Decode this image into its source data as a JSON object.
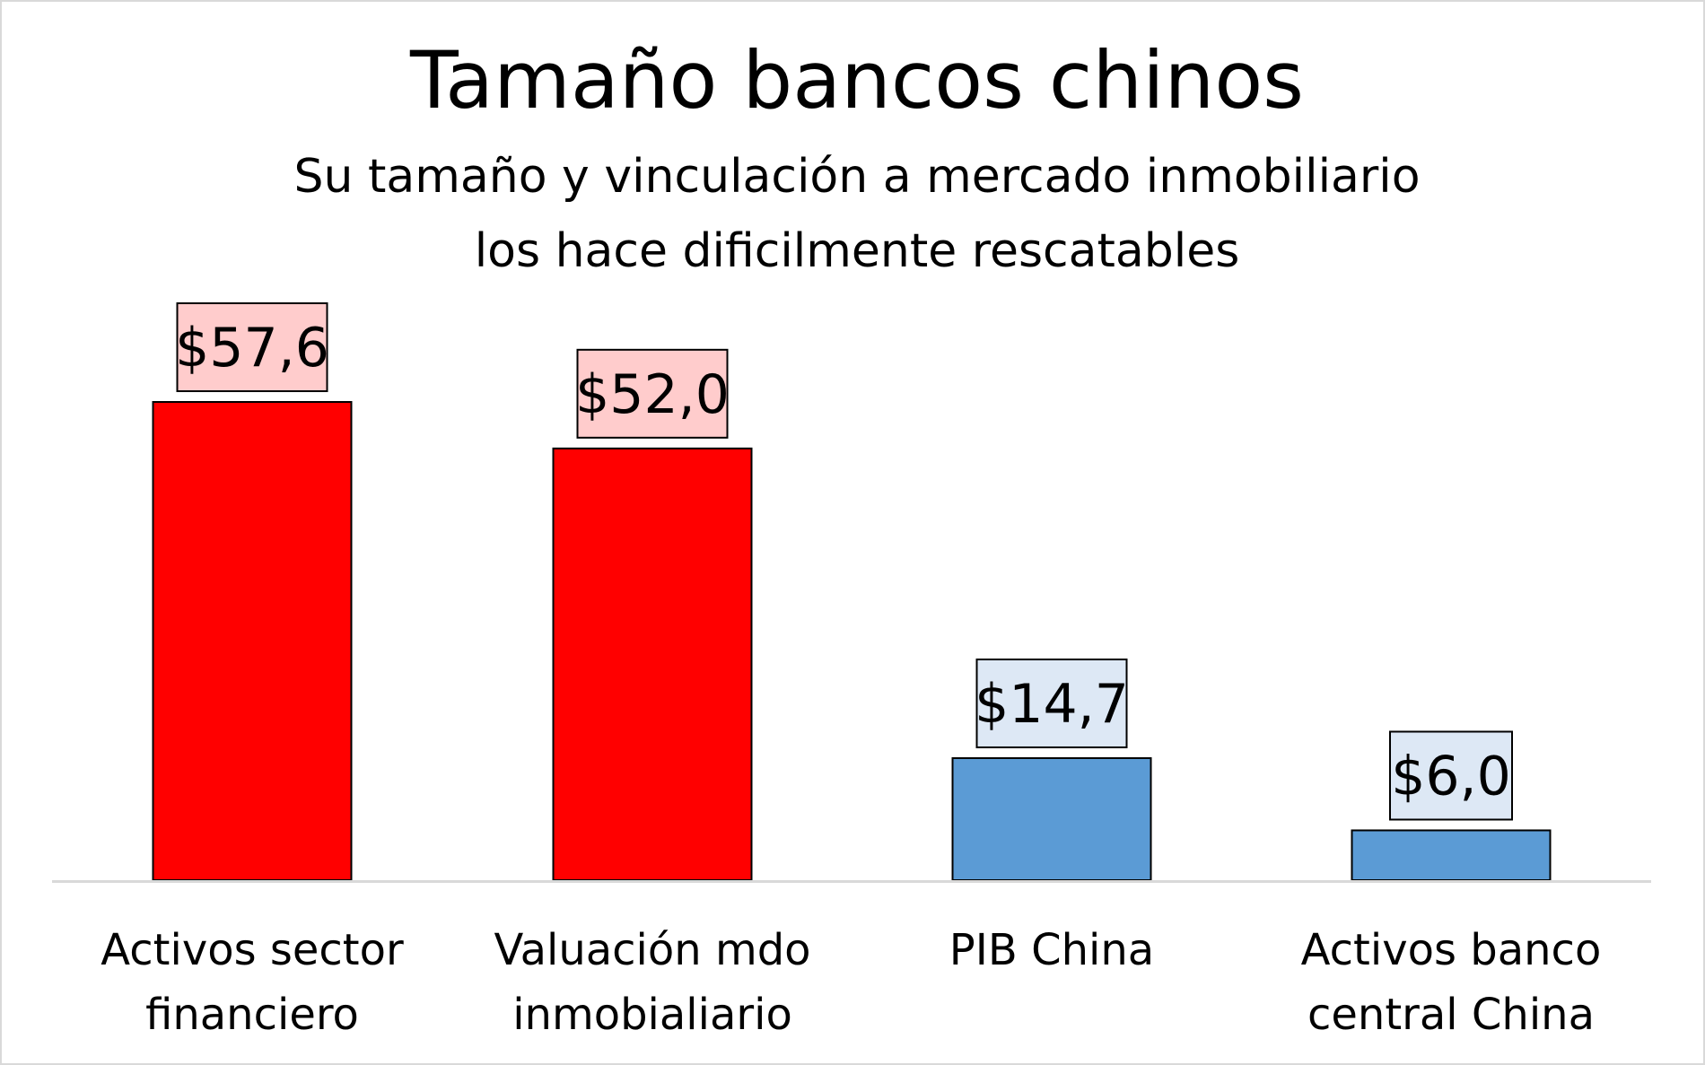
{
  "chart_data": {
    "type": "bar",
    "title": "Tamaño bancos chinos",
    "subtitle": [
      "Su tamaño y vinculación a mercado inmobiliario",
      "los hace dificilmente rescatables"
    ],
    "categories": [
      [
        "Activos sector",
        "financiero"
      ],
      [
        "Valuación mdo",
        "inmobialiario"
      ],
      [
        "PIB China"
      ],
      [
        "Activos banco",
        "central China"
      ]
    ],
    "values": [
      57.6,
      52.0,
      14.7,
      6.0
    ],
    "data_labels": [
      "$57,6",
      "$52,0",
      "$14,7",
      "$6,0"
    ],
    "ylim": [
      0,
      57.6
    ],
    "grid": false,
    "legend": "none",
    "colors": {
      "highlight_bar": "#ff0000",
      "highlight_label_bg": "#ffcccc",
      "normal_bar": "#5b9bd5",
      "normal_label_bg": "#dde8f5",
      "axis": "#d9d9d9",
      "bar_border": "#000000"
    },
    "bar_colors": [
      "highlight",
      "highlight",
      "normal",
      "normal"
    ]
  }
}
